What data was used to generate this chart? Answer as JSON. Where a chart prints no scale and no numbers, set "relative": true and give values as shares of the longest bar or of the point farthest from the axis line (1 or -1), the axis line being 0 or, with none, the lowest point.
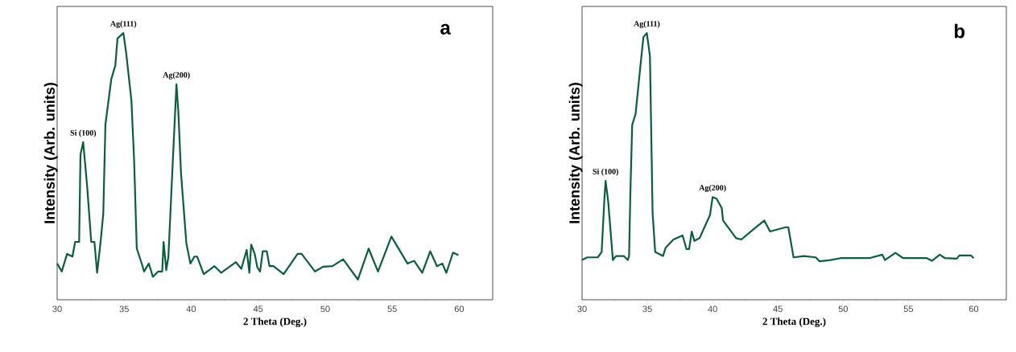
{
  "chart_data": [
    {
      "type": "line",
      "title": "a",
      "xlabel": "2 Theta (Deg.)",
      "ylabel": "Intensity (Arb. units)",
      "relative": true,
      "color": "#0b5e3c",
      "xlim": [
        30,
        62.5
      ],
      "xticks": [
        30,
        35,
        40,
        45,
        50,
        55,
        60
      ],
      "x": [
        30,
        30.34,
        30.74,
        31.14,
        31.34,
        31.64,
        31.74,
        31.94,
        32.24,
        32.54,
        32.78,
        32.98,
        33.24,
        33.44,
        33.6,
        34.04,
        34.34,
        34.5,
        34.94,
        35.14,
        35.54,
        35.74,
        35.94,
        36.34,
        36.48,
        36.84,
        37.14,
        37.54,
        37.84,
        37.94,
        38.14,
        38.3,
        38.54,
        38.9,
        39.04,
        39.24,
        39.64,
        39.94,
        40.24,
        40.44,
        40.94,
        41.74,
        42.24,
        43.34,
        43.74,
        44.14,
        44.34,
        44.48,
        44.74,
        44.94,
        45.14,
        45.34,
        45.64,
        45.84,
        46.14,
        46.9,
        47.94,
        48.24,
        49.24,
        49.84,
        50.54,
        51.34,
        52.44,
        53.24,
        53.94,
        54.94,
        56.14,
        56.64,
        57.24,
        57.84,
        58.34,
        58.74,
        59.04,
        59.54,
        59.94
      ],
      "values": [
        0.136,
        0.106,
        0.172,
        0.162,
        0.217,
        0.217,
        0.545,
        0.591,
        0.424,
        0.217,
        0.217,
        0.101,
        0.217,
        0.323,
        0.657,
        0.828,
        0.879,
        0.98,
        1.0,
        0.929,
        0.747,
        0.525,
        0.192,
        0.131,
        0.106,
        0.136,
        0.086,
        0.106,
        0.106,
        0.217,
        0.111,
        0.162,
        0.424,
        0.808,
        0.707,
        0.475,
        0.212,
        0.136,
        0.162,
        0.162,
        0.096,
        0.126,
        0.101,
        0.141,
        0.116,
        0.187,
        0.101,
        0.207,
        0.172,
        0.121,
        0.106,
        0.182,
        0.182,
        0.126,
        0.126,
        0.096,
        0.172,
        0.172,
        0.106,
        0.124,
        0.126,
        0.152,
        0.076,
        0.192,
        0.106,
        0.237,
        0.136,
        0.146,
        0.101,
        0.182,
        0.126,
        0.136,
        0.101,
        0.177,
        0.167
      ],
      "annotations": [
        {
          "text": "Si (100)",
          "x": 31.94,
          "y": 0.591
        },
        {
          "text": "Ag(111)",
          "x": 34.94,
          "y": 1.0
        },
        {
          "text": "Ag(200)",
          "x": 38.9,
          "y": 0.808
        }
      ]
    },
    {
      "type": "line",
      "title": "b",
      "xlabel": "2 Theta (Deg.)",
      "ylabel": "Intensity (Arb. units)",
      "relative": true,
      "color": "#0b5e3c",
      "xlim": [
        30,
        62.5
      ],
      "xticks": [
        30,
        35,
        40,
        45,
        50,
        55,
        60
      ],
      "x": [
        30,
        30.4,
        31.2,
        31.5,
        31.7,
        31.8,
        32.0,
        32.36,
        32.6,
        33.2,
        33.5,
        33.6,
        33.7,
        33.84,
        34.1,
        34.5,
        34.7,
        34.96,
        35.2,
        35.4,
        35.6,
        36.2,
        36.4,
        37.0,
        37.7,
        38.0,
        38.2,
        38.4,
        38.6,
        39.0,
        39.8,
        40.0,
        40.3,
        40.7,
        40.8,
        41.8,
        42.2,
        43.2,
        43.96,
        44.4,
        45.6,
        45.8,
        46.2,
        47.0,
        47.9,
        48.2,
        49.0,
        49.8,
        52.0,
        53.0,
        53.2,
        54.0,
        54.6,
        56.4,
        56.8,
        57.4,
        57.8,
        58.7,
        58.9,
        59.8,
        60.0
      ],
      "values": [
        0.149,
        0.159,
        0.159,
        0.179,
        0.369,
        0.446,
        0.369,
        0.149,
        0.164,
        0.164,
        0.149,
        0.164,
        0.4,
        0.656,
        0.697,
        0.892,
        0.985,
        1.0,
        0.913,
        0.328,
        0.179,
        0.164,
        0.195,
        0.226,
        0.241,
        0.19,
        0.19,
        0.256,
        0.221,
        0.231,
        0.318,
        0.385,
        0.379,
        0.344,
        0.297,
        0.231,
        0.226,
        0.267,
        0.297,
        0.256,
        0.272,
        0.272,
        0.159,
        0.164,
        0.159,
        0.144,
        0.149,
        0.156,
        0.156,
        0.169,
        0.149,
        0.176,
        0.156,
        0.156,
        0.146,
        0.169,
        0.156,
        0.154,
        0.166,
        0.166,
        0.156
      ],
      "annotations": [
        {
          "text": "Si (100)",
          "x": 31.8,
          "y": 0.446
        },
        {
          "text": "Ag(111)",
          "x": 34.96,
          "y": 1.0
        },
        {
          "text": "Ag(200)",
          "x": 40.0,
          "y": 0.385
        }
      ]
    }
  ]
}
